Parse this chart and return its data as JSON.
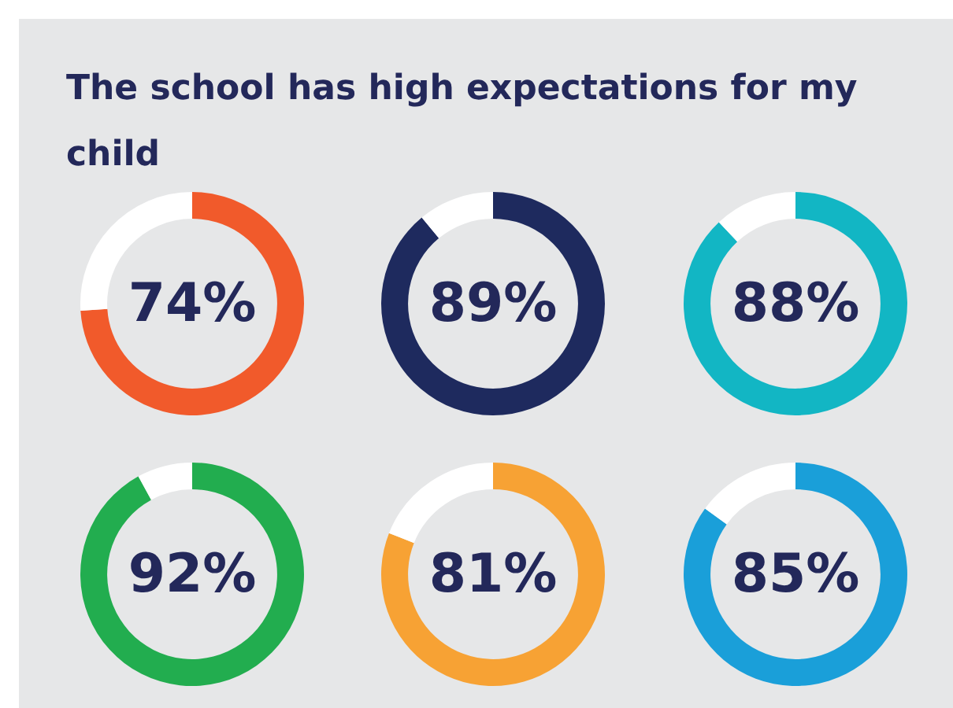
{
  "chart_data": [
    {
      "type": "donut",
      "title": "The school has high expectations for my child",
      "categories": [
        null,
        null
      ],
      "values": [
        74,
        26
      ],
      "colors": [
        "#f15a2b",
        "#ffffff"
      ],
      "value_labels": [
        "74%",
        null
      ],
      "legend": false
    },
    {
      "type": "donut",
      "categories": [
        null,
        null
      ],
      "values": [
        89,
        11
      ],
      "colors": [
        "#1e2a5e",
        "#ffffff"
      ],
      "value_labels": [
        "89%",
        null
      ],
      "legend": false
    },
    {
      "type": "donut",
      "categories": [
        null,
        null
      ],
      "values": [
        88,
        12
      ],
      "colors": [
        "#12b6c4",
        "#ffffff"
      ],
      "value_labels": [
        "88%",
        null
      ],
      "legend": false
    },
    {
      "type": "donut",
      "categories": [
        null,
        null
      ],
      "values": [
        92,
        8
      ],
      "colors": [
        "#22ad4f",
        "#ffffff"
      ],
      "value_labels": [
        "92%",
        null
      ],
      "legend": false
    },
    {
      "type": "donut",
      "categories": [
        null,
        null
      ],
      "values": [
        81,
        19
      ],
      "colors": [
        "#f7a234",
        "#ffffff"
      ],
      "value_labels": [
        "81%",
        null
      ],
      "legend": false
    },
    {
      "type": "donut",
      "categories": [
        null,
        null
      ],
      "values": [
        85,
        15
      ],
      "colors": [
        "#1a9fd9",
        "#ffffff"
      ],
      "value_labels": [
        "85%",
        null
      ],
      "legend": false
    }
  ]
}
